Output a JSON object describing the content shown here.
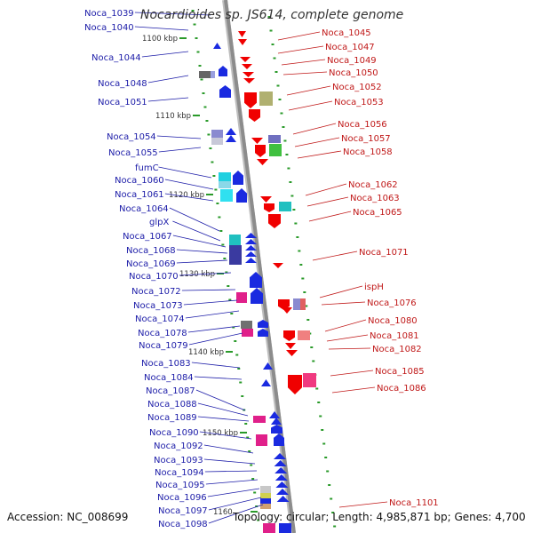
{
  "title": "Nocardioides sp. JS614, complete genome",
  "accession_text": "Accession: NC_008699",
  "summary_text": "Topology: circular; Length: 4,985,871 bp; Genes: 4,700",
  "colors": {
    "left_label": "#1c1ca8",
    "right_label": "#c01818",
    "forward_gene": "#1a2ae0",
    "reverse_gene": "#f00000",
    "backbone": "#8c8c8c",
    "tick": "#2a9a2a"
  },
  "scale_labels": [
    "1100 kbp",
    "1110 kbp",
    "1120 kbp",
    "1130 kbp",
    "1140 kbp",
    "1150 kbp",
    "1160"
  ],
  "left_labels": [
    "Noca_1039",
    "Noca_1040",
    "Noca_1044",
    "Noca_1048",
    "Noca_1051",
    "Noca_1054",
    "Noca_1055",
    "fumC",
    "Noca_1060",
    "Noca_1061",
    "Noca_1064",
    "glpX",
    "Noca_1067",
    "Noca_1068",
    "Noca_1069",
    "Noca_1070",
    "Noca_1072",
    "Noca_1073",
    "Noca_1074",
    "Noca_1078",
    "Noca_1079",
    "Noca_1083",
    "Noca_1084",
    "Noca_1087",
    "Noca_1088",
    "Noca_1089",
    "Noca_1090",
    "Noca_1092",
    "Noca_1093",
    "Noca_1094",
    "Noca_1095",
    "Noca_1096",
    "Noca_1097",
    "Noca_1098"
  ],
  "right_labels": [
    "Noca_1045",
    "Noca_1047",
    "Noca_1049",
    "Noca_1050",
    "Noca_1052",
    "Noca_1053",
    "Noca_1056",
    "Noca_1057",
    "Noca_1058",
    "Noca_1062",
    "Noca_1063",
    "Noca_1065",
    "Noca_1071",
    "ispH",
    "Noca_1076",
    "Noca_1080",
    "Noca_1081",
    "Noca_1082",
    "Noca_1085",
    "Noca_1086",
    "Noca_1101"
  ]
}
